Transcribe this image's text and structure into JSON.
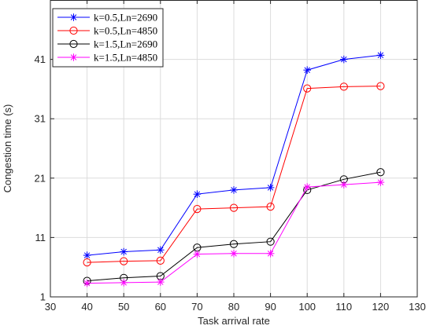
{
  "chart_data": {
    "type": "line",
    "title": "",
    "xlabel": "Task arrival rate",
    "ylabel": "Congestion time (s)",
    "xlim": [
      30,
      130
    ],
    "ylim": [
      1,
      51
    ],
    "xticks": [
      30,
      40,
      50,
      60,
      70,
      80,
      90,
      100,
      110,
      120,
      130
    ],
    "yticks": [
      1,
      11,
      21,
      31,
      41
    ],
    "grid": true,
    "legend_position": "top-left",
    "x": [
      40,
      50,
      60,
      70,
      80,
      90,
      100,
      110,
      120
    ],
    "series": [
      {
        "name": "k=0.5,Ln=2690",
        "color": "#0000ff",
        "marker": "asterisk",
        "values": [
          8.0,
          8.6,
          8.9,
          18.3,
          19.0,
          19.4,
          39.2,
          41.0,
          41.7
        ]
      },
      {
        "name": "k=0.5,Ln=4850",
        "color": "#ff0000",
        "marker": "circle",
        "values": [
          6.8,
          7.0,
          7.1,
          15.8,
          16.0,
          16.2,
          36.1,
          36.4,
          36.5
        ]
      },
      {
        "name": "k=1.5,Ln=2690",
        "color": "#000000",
        "marker": "circle",
        "values": [
          3.7,
          4.2,
          4.5,
          9.3,
          9.9,
          10.3,
          19.0,
          20.8,
          22.0
        ]
      },
      {
        "name": "k=1.5,Ln=4850",
        "color": "#ff00ff",
        "marker": "asterisk",
        "values": [
          3.3,
          3.4,
          3.5,
          8.2,
          8.3,
          8.3,
          19.5,
          19.9,
          20.3
        ]
      }
    ]
  }
}
